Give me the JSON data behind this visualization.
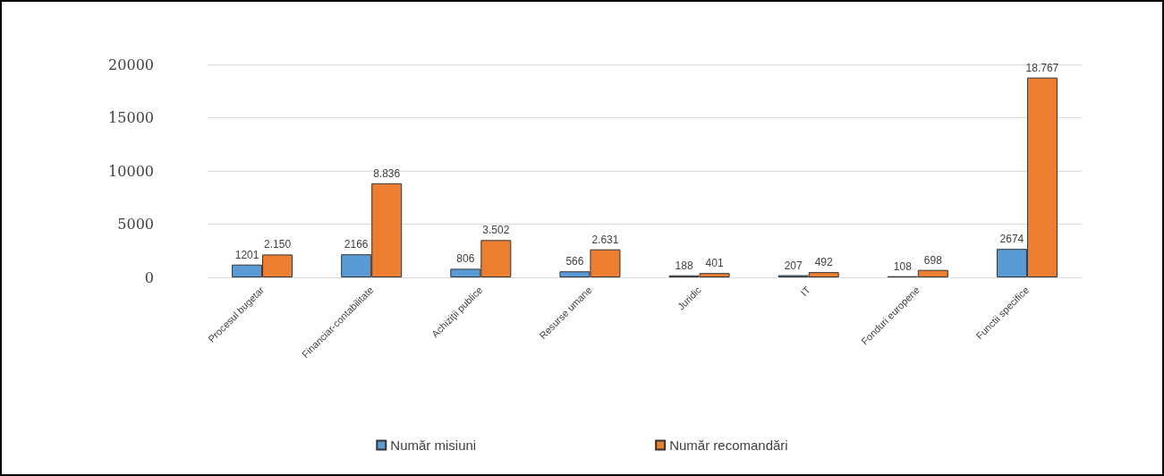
{
  "chart_data": {
    "type": "bar",
    "categories": [
      "Procesul bugetar",
      "Financiar-contabilitate",
      "Achiziţii publice",
      "Resurse umane",
      "Juridic",
      "IT",
      "Fonduri europene",
      "Functii specifice"
    ],
    "series": [
      {
        "name": "Număr misiuni",
        "color": "#5b9bd5",
        "values": [
          1201,
          2166,
          806,
          566,
          188,
          207,
          108,
          2674
        ],
        "value_labels": [
          "1201",
          "2166",
          "806",
          "566",
          "188",
          "207",
          "108",
          "2674"
        ]
      },
      {
        "name": "Număr recomandări",
        "color": "#ed7d31",
        "values": [
          2150,
          8836,
          3502,
          2631,
          401,
          492,
          698,
          18767
        ],
        "value_labels": [
          "2.150",
          "8.836",
          "3.502",
          "2.631",
          "401",
          "492",
          "698",
          "18.767"
        ]
      }
    ],
    "ylim": [
      0,
      20000
    ],
    "yticks": [
      0,
      5000,
      10000,
      15000,
      20000
    ],
    "grid": "y",
    "legend": "bottom"
  }
}
